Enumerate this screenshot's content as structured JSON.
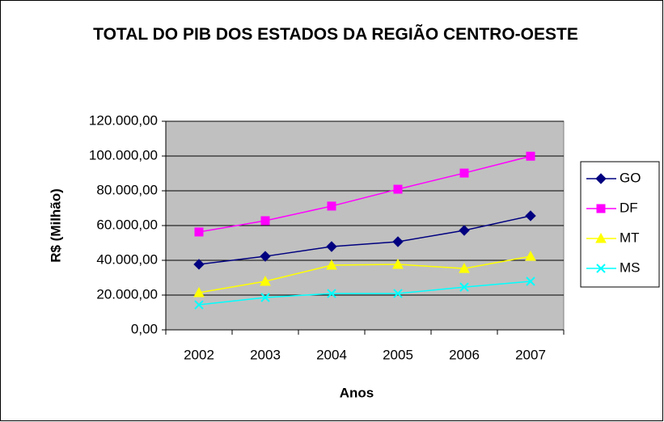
{
  "chart_data": {
    "type": "line",
    "title": "TOTAL DO PIB DOS ESTADOS DA REGIÃO CENTRO-OESTE",
    "x_label": "Anos",
    "y_label": "R$ (Milhão)",
    "categories": [
      "2002",
      "2003",
      "2004",
      "2005",
      "2006",
      "2007"
    ],
    "series": [
      {
        "name": "GO",
        "color": "#000080",
        "marker": "diamond",
        "values": [
          37700,
          42300,
          47900,
          50700,
          57200,
          65600
        ]
      },
      {
        "name": "DF",
        "color": "#FF00FF",
        "marker": "square",
        "values": [
          56300,
          62800,
          71200,
          80900,
          90200,
          99900
        ]
      },
      {
        "name": "MT",
        "color": "#FFFF00",
        "marker": "triangle",
        "values": [
          21400,
          27900,
          37200,
          37700,
          35300,
          42300
        ]
      },
      {
        "name": "MS",
        "color": "#00FFFF",
        "marker": "x",
        "values": [
          14400,
          18600,
          20900,
          20900,
          24600,
          27900
        ]
      }
    ],
    "ylim": [
      0,
      120000
    ],
    "yticks": [
      {
        "value": 0,
        "label": "0,00"
      },
      {
        "value": 20000,
        "label": "20.000,00"
      },
      {
        "value": 40000,
        "label": "40.000,00"
      },
      {
        "value": 60000,
        "label": "60.000,00"
      },
      {
        "value": 80000,
        "label": "80.000,00"
      },
      {
        "value": 100000,
        "label": "100.000,00"
      },
      {
        "value": 120000,
        "label": "120.000,00"
      }
    ],
    "grid": true,
    "legend": "right"
  }
}
